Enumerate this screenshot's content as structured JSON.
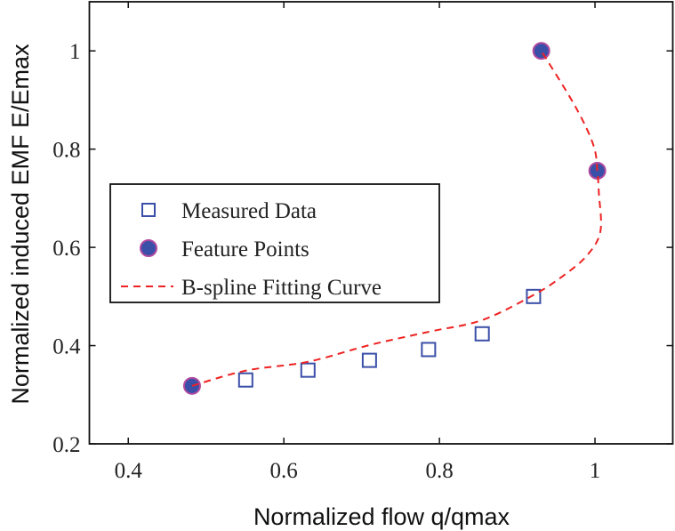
{
  "chart_data": {
    "type": "scatter",
    "title": "",
    "xlabel": "Normalized flow q/qmax",
    "ylabel": "Normalized induced EMF E/Emax",
    "xlim": [
      0.35,
      1.1
    ],
    "ylim": [
      0.2,
      1.1
    ],
    "xticks": [
      0.4,
      0.6,
      0.8,
      1
    ],
    "xtick_labels": [
      "0.4",
      "0.6",
      "0.8",
      "1"
    ],
    "yticks": [
      0.2,
      0.4,
      0.6,
      0.8,
      1
    ],
    "ytick_labels": [
      "0.2",
      "0.4",
      "0.6",
      "0.8",
      "1"
    ],
    "grid": false,
    "legend_placement": "center-left",
    "series": [
      {
        "name": "Measured Data",
        "type": "scatter",
        "marker": "square-open",
        "color": "#3a4fa8",
        "x": [
          0.551,
          0.631,
          0.71,
          0.786,
          0.855,
          0.921
        ],
        "y": [
          0.33,
          0.35,
          0.37,
          0.392,
          0.424,
          0.5
        ]
      },
      {
        "name": "Feature Points",
        "type": "scatter",
        "marker": "circle-filled",
        "color": "#3a4fa8",
        "edge_color": "#b04aa0",
        "x": [
          0.482,
          0.931,
          1.003
        ],
        "y": [
          0.318,
          1.0,
          0.756
        ]
      },
      {
        "name": "B-spline Fitting Curve",
        "type": "line",
        "style": "dashed",
        "color": "#ee2222",
        "x": [
          0.482,
          0.551,
          0.631,
          0.71,
          0.786,
          0.855,
          0.921,
          0.959,
          0.99,
          1.007,
          1.005,
          1.003,
          0.998,
          0.975,
          0.931
        ],
        "y": [
          0.318,
          0.349,
          0.367,
          0.401,
          0.428,
          0.452,
          0.503,
          0.542,
          0.584,
          0.633,
          0.71,
          0.756,
          0.808,
          0.886,
          1.0
        ]
      }
    ]
  }
}
